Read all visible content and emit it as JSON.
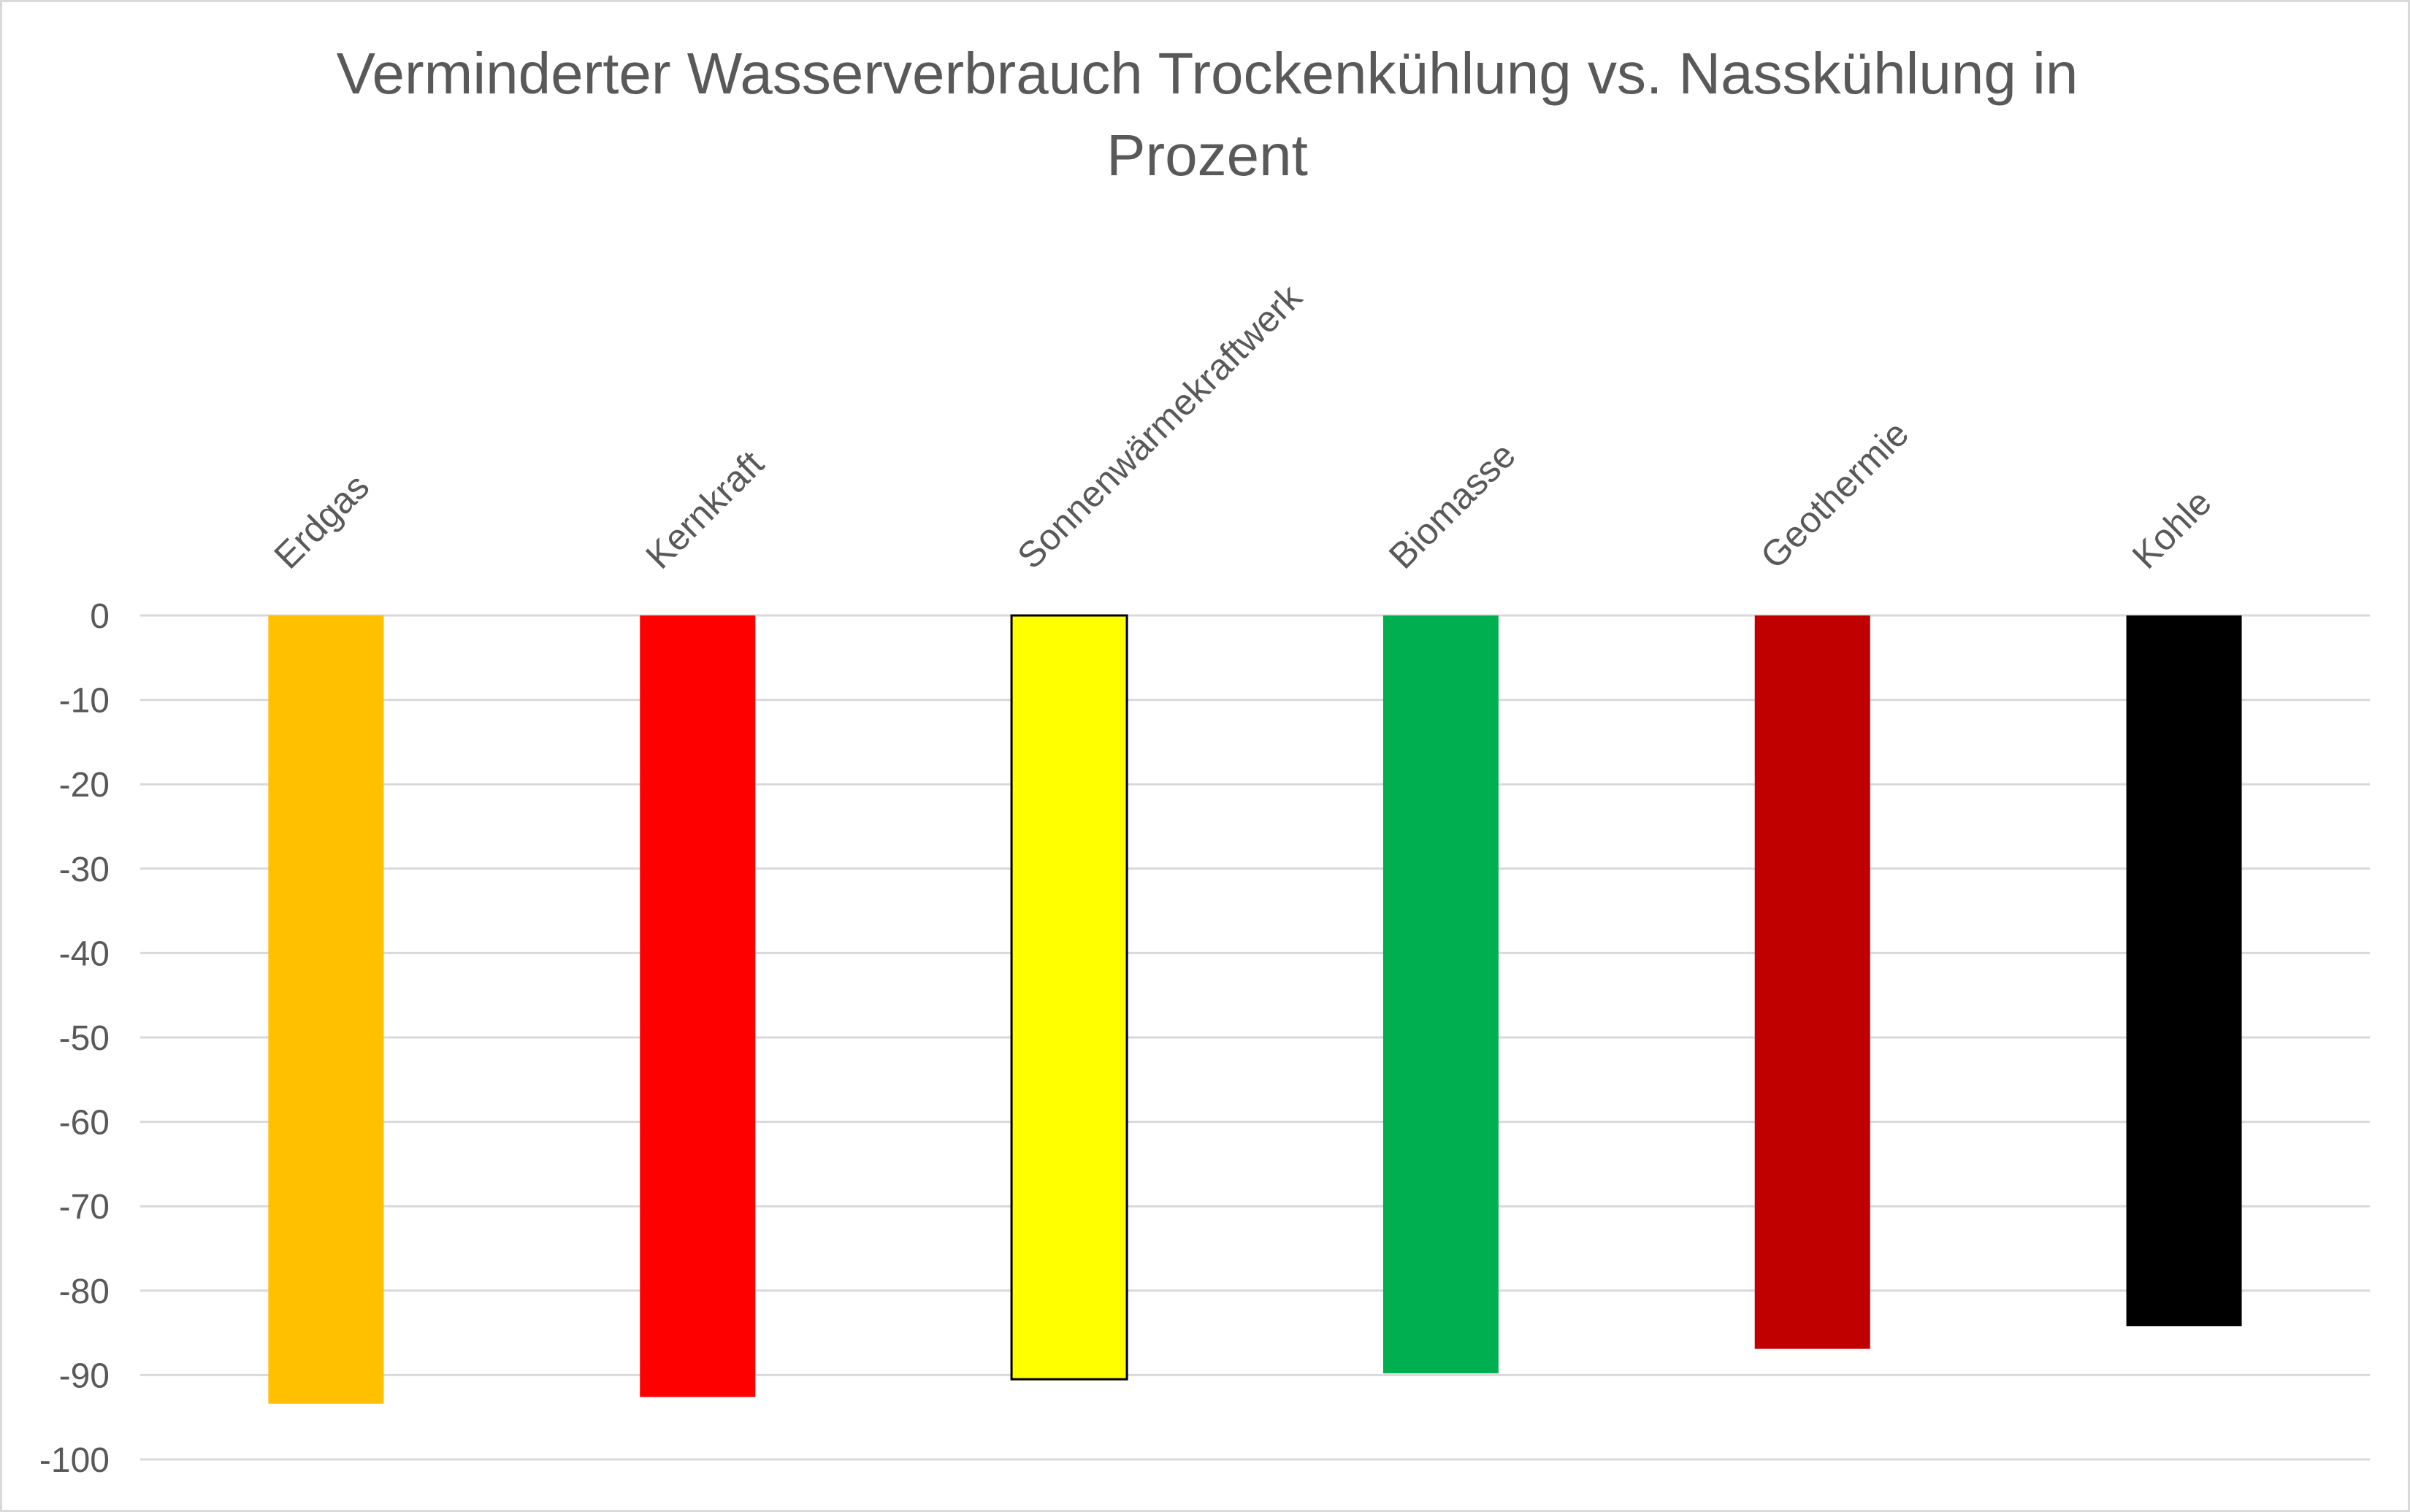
{
  "chart_data": {
    "type": "bar",
    "title": "Verminderter Wasserverbrauch Trockenkühlung vs. Nasskühlung in Prozent",
    "xlabel": "",
    "ylabel": "",
    "categories": [
      "Erdgas",
      "Kernkraft",
      "Sonnenwärmekraftwerk",
      "Biomasse",
      "Geothermie",
      "Kohle"
    ],
    "values": [
      -93.4,
      -92.6,
      -90.5,
      -89.8,
      -86.9,
      -84.2
    ],
    "colors": [
      "#ffc000",
      "#ff0000",
      "#ffff00",
      "#00b050",
      "#c00000",
      "#000000"
    ],
    "bar_outline": [
      false,
      false,
      true,
      false,
      false,
      false
    ],
    "ylim": [
      -100,
      0
    ],
    "yticks": [
      0,
      -10,
      -20,
      -30,
      -40,
      -50,
      -60,
      -70,
      -80,
      -90,
      -100
    ],
    "grid": true,
    "legend": "none",
    "category_labels_position": "top, rotated -45"
  }
}
